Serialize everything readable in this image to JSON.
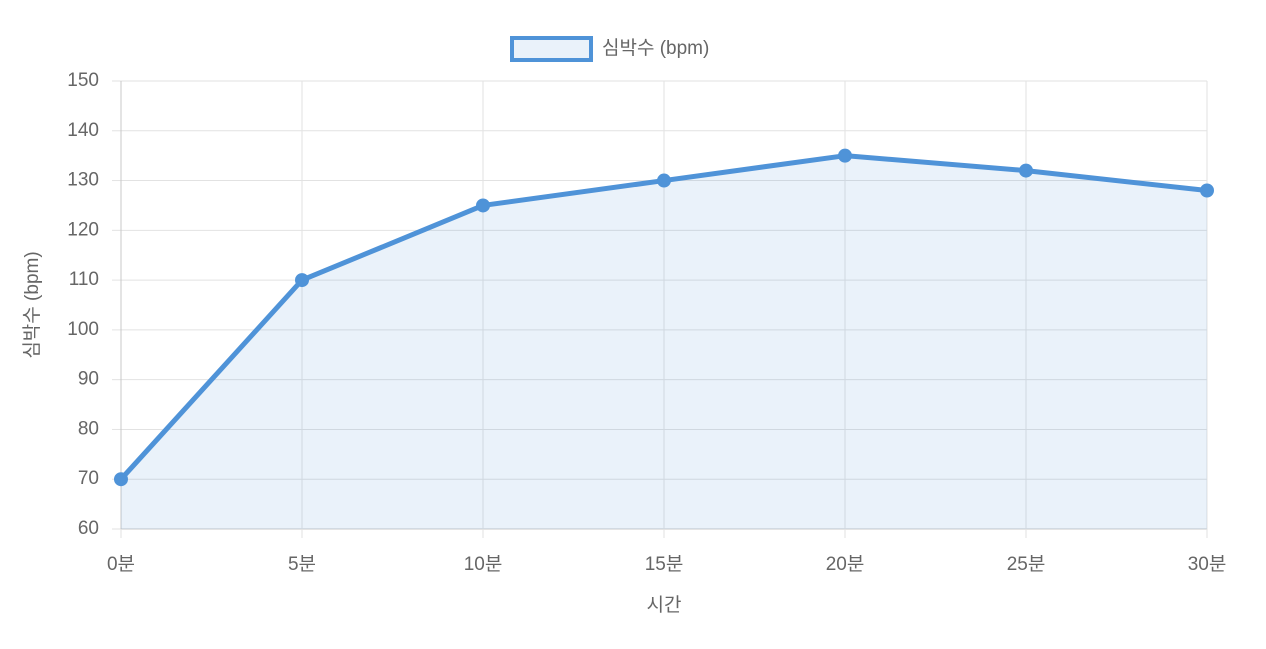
{
  "chart_data": {
    "type": "line",
    "x_label": "시간",
    "y_label": "심박수 (bpm)",
    "categories": [
      "0분",
      "5분",
      "10분",
      "15분",
      "20분",
      "25분",
      "30분"
    ],
    "series": [
      {
        "name": "심박수 (bpm)",
        "color": "#4f93d8",
        "values": [
          70,
          110,
          125,
          130,
          135,
          132,
          128
        ]
      }
    ],
    "fill": true,
    "ylim": [
      60,
      150
    ],
    "yticks": [
      60,
      70,
      80,
      90,
      100,
      110,
      120,
      130,
      140,
      150
    ],
    "grid": true,
    "legend": "top"
  }
}
